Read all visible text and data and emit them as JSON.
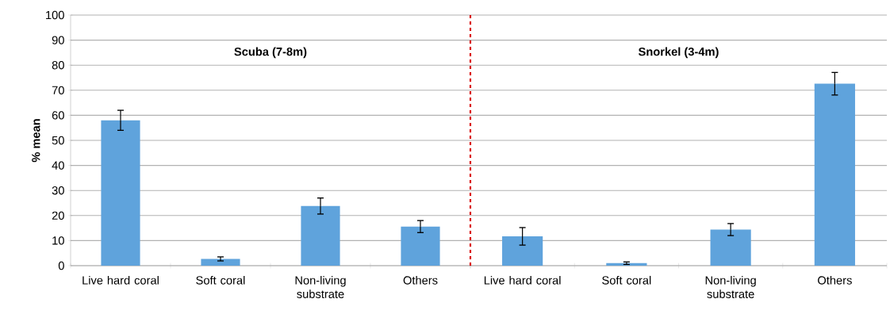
{
  "chart_data": [
    {
      "type": "bar",
      "ylabel": "% mean",
      "annotations": [
        "Scuba (7-8m)"
      ],
      "categories": [
        "Live hard coral",
        "Soft coral",
        "Non-living substrate",
        "Others"
      ],
      "values": [
        58,
        2.7,
        23.8,
        15.6
      ],
      "errors": [
        4,
        0.8,
        3.2,
        2.4
      ],
      "color": "#5fa3dc",
      "ylim": [
        0,
        100
      ],
      "yticks": [
        0,
        10,
        20,
        30,
        40,
        50,
        60,
        70,
        80,
        90,
        100
      ],
      "grid": "y"
    },
    {
      "type": "bar",
      "annotations": [
        "Snorkel (3-4m)"
      ],
      "categories": [
        "Live hard coral",
        "Soft coral",
        "Non-living substrate",
        "Others"
      ],
      "values": [
        11.7,
        1,
        14.4,
        72.6
      ],
      "errors": [
        3.5,
        0.5,
        2.4,
        4.5
      ],
      "color": "#5fa3dc",
      "ylim": [
        0,
        100
      ],
      "yticks": [
        0,
        10,
        20,
        30,
        40,
        50,
        60,
        70,
        80,
        90,
        100
      ],
      "grid": "y",
      "tick_labels": "x"
    }
  ]
}
